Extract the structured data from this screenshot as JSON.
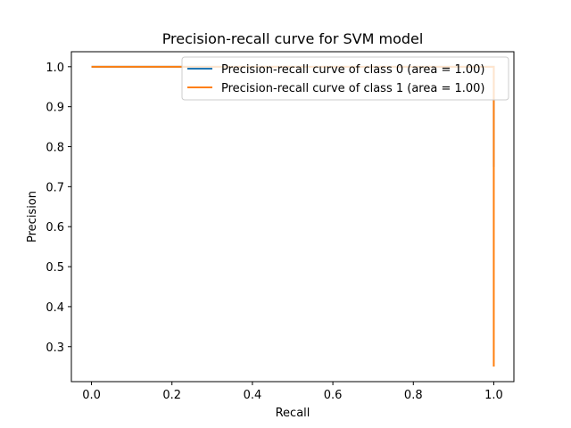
{
  "chart_data": {
    "type": "line",
    "title": "Precision-recall curve for SVM model",
    "xlabel": "Recall",
    "ylabel": "Precision",
    "xlim": [
      -0.05,
      1.05
    ],
    "ylim": [
      0.2125,
      1.0375
    ],
    "xticks": [
      0.0,
      0.2,
      0.4,
      0.6,
      0.8,
      1.0
    ],
    "yticks": [
      0.3,
      0.4,
      0.5,
      0.6,
      0.7,
      0.8,
      0.9,
      1.0
    ],
    "xtick_labels": [
      "0.0",
      "0.2",
      "0.4",
      "0.6",
      "0.8",
      "1.0"
    ],
    "ytick_labels": [
      "0.3",
      "0.4",
      "0.5",
      "0.6",
      "0.7",
      "0.8",
      "0.9",
      "1.0"
    ],
    "grid": false,
    "legend_position": "top-right",
    "series": [
      {
        "name": "Precision-recall curve of class 0 (area = 1.00)",
        "color": "#1f77b4",
        "x": [
          0.0,
          1.0,
          1.0
        ],
        "y": [
          1.0,
          1.0,
          0.75
        ]
      },
      {
        "name": "Precision-recall curve of class 1 (area = 1.00)",
        "color": "#ff7f0e",
        "x": [
          0.0,
          1.0,
          1.0
        ],
        "y": [
          1.0,
          1.0,
          0.25
        ]
      }
    ]
  }
}
